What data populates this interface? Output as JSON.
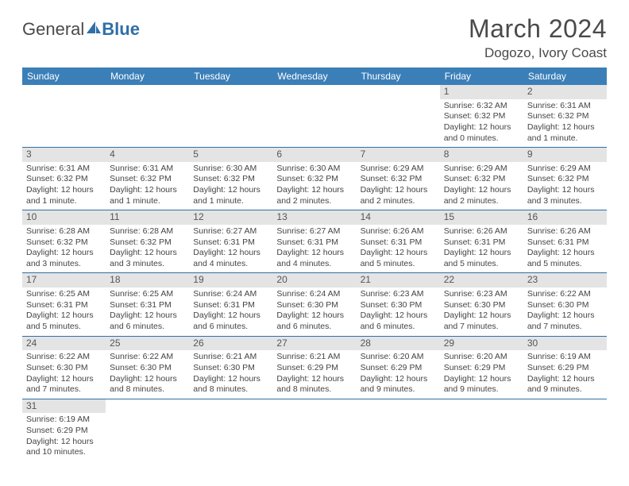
{
  "logo": {
    "text1": "General",
    "text2": "Blue"
  },
  "title": "March 2024",
  "location": "Dogozo, Ivory Coast",
  "colors": {
    "header_bg": "#3b7fb8",
    "row_border": "#2f6fa8",
    "daynum_bg": "#e4e4e4",
    "text": "#4a4a4a"
  },
  "daysOfWeek": [
    "Sunday",
    "Monday",
    "Tuesday",
    "Wednesday",
    "Thursday",
    "Friday",
    "Saturday"
  ],
  "weeks": [
    [
      null,
      null,
      null,
      null,
      null,
      {
        "n": "1",
        "sr": "6:32 AM",
        "ss": "6:32 PM",
        "dl": "12 hours and 0 minutes."
      },
      {
        "n": "2",
        "sr": "6:31 AM",
        "ss": "6:32 PM",
        "dl": "12 hours and 1 minute."
      }
    ],
    [
      {
        "n": "3",
        "sr": "6:31 AM",
        "ss": "6:32 PM",
        "dl": "12 hours and 1 minute."
      },
      {
        "n": "4",
        "sr": "6:31 AM",
        "ss": "6:32 PM",
        "dl": "12 hours and 1 minute."
      },
      {
        "n": "5",
        "sr": "6:30 AM",
        "ss": "6:32 PM",
        "dl": "12 hours and 1 minute."
      },
      {
        "n": "6",
        "sr": "6:30 AM",
        "ss": "6:32 PM",
        "dl": "12 hours and 2 minutes."
      },
      {
        "n": "7",
        "sr": "6:29 AM",
        "ss": "6:32 PM",
        "dl": "12 hours and 2 minutes."
      },
      {
        "n": "8",
        "sr": "6:29 AM",
        "ss": "6:32 PM",
        "dl": "12 hours and 2 minutes."
      },
      {
        "n": "9",
        "sr": "6:29 AM",
        "ss": "6:32 PM",
        "dl": "12 hours and 3 minutes."
      }
    ],
    [
      {
        "n": "10",
        "sr": "6:28 AM",
        "ss": "6:32 PM",
        "dl": "12 hours and 3 minutes."
      },
      {
        "n": "11",
        "sr": "6:28 AM",
        "ss": "6:32 PM",
        "dl": "12 hours and 3 minutes."
      },
      {
        "n": "12",
        "sr": "6:27 AM",
        "ss": "6:31 PM",
        "dl": "12 hours and 4 minutes."
      },
      {
        "n": "13",
        "sr": "6:27 AM",
        "ss": "6:31 PM",
        "dl": "12 hours and 4 minutes."
      },
      {
        "n": "14",
        "sr": "6:26 AM",
        "ss": "6:31 PM",
        "dl": "12 hours and 5 minutes."
      },
      {
        "n": "15",
        "sr": "6:26 AM",
        "ss": "6:31 PM",
        "dl": "12 hours and 5 minutes."
      },
      {
        "n": "16",
        "sr": "6:26 AM",
        "ss": "6:31 PM",
        "dl": "12 hours and 5 minutes."
      }
    ],
    [
      {
        "n": "17",
        "sr": "6:25 AM",
        "ss": "6:31 PM",
        "dl": "12 hours and 5 minutes."
      },
      {
        "n": "18",
        "sr": "6:25 AM",
        "ss": "6:31 PM",
        "dl": "12 hours and 6 minutes."
      },
      {
        "n": "19",
        "sr": "6:24 AM",
        "ss": "6:31 PM",
        "dl": "12 hours and 6 minutes."
      },
      {
        "n": "20",
        "sr": "6:24 AM",
        "ss": "6:30 PM",
        "dl": "12 hours and 6 minutes."
      },
      {
        "n": "21",
        "sr": "6:23 AM",
        "ss": "6:30 PM",
        "dl": "12 hours and 6 minutes."
      },
      {
        "n": "22",
        "sr": "6:23 AM",
        "ss": "6:30 PM",
        "dl": "12 hours and 7 minutes."
      },
      {
        "n": "23",
        "sr": "6:22 AM",
        "ss": "6:30 PM",
        "dl": "12 hours and 7 minutes."
      }
    ],
    [
      {
        "n": "24",
        "sr": "6:22 AM",
        "ss": "6:30 PM",
        "dl": "12 hours and 7 minutes."
      },
      {
        "n": "25",
        "sr": "6:22 AM",
        "ss": "6:30 PM",
        "dl": "12 hours and 8 minutes."
      },
      {
        "n": "26",
        "sr": "6:21 AM",
        "ss": "6:30 PM",
        "dl": "12 hours and 8 minutes."
      },
      {
        "n": "27",
        "sr": "6:21 AM",
        "ss": "6:29 PM",
        "dl": "12 hours and 8 minutes."
      },
      {
        "n": "28",
        "sr": "6:20 AM",
        "ss": "6:29 PM",
        "dl": "12 hours and 9 minutes."
      },
      {
        "n": "29",
        "sr": "6:20 AM",
        "ss": "6:29 PM",
        "dl": "12 hours and 9 minutes."
      },
      {
        "n": "30",
        "sr": "6:19 AM",
        "ss": "6:29 PM",
        "dl": "12 hours and 9 minutes."
      }
    ],
    [
      {
        "n": "31",
        "sr": "6:19 AM",
        "ss": "6:29 PM",
        "dl": "12 hours and 10 minutes."
      },
      null,
      null,
      null,
      null,
      null,
      null
    ]
  ],
  "labels": {
    "sunrise": "Sunrise: ",
    "sunset": "Sunset: ",
    "daylight": "Daylight: "
  }
}
